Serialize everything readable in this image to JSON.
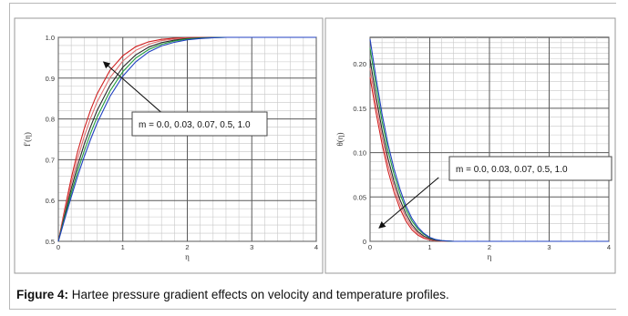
{
  "caption": {
    "label": "Figure 4:",
    "text": " Hartee pressure gradient effects on velocity and temperature profiles."
  },
  "colors": {
    "grid": "#5a5a5a",
    "plot_bg": "#ffffff",
    "panel_border": "#9a9a9a",
    "series": [
      "#d02020",
      "#e07070",
      "#2a2a2a",
      "#1f9a3a",
      "#2040c0"
    ]
  },
  "chart_data": [
    {
      "type": "line",
      "xlabel": "η",
      "ylabel": "f′(η)",
      "xlim": [
        0,
        4
      ],
      "ylim": [
        0.5,
        1.0
      ],
      "xticks": [
        "0",
        "1",
        "2",
        "3",
        "4"
      ],
      "yticks": [
        "0.5",
        "0.6",
        "0.7",
        "0.8",
        "0.9",
        "1.0"
      ],
      "grid": true,
      "annotation": {
        "text": "m = 0.0, 0.03, 0.07, 0.5, 1.0",
        "arrow_to": [
          0.7,
          0.94
        ],
        "arrow_from": [
          2.0,
          0.76
        ]
      },
      "series": [
        {
          "m": 0.0,
          "x": [
            0,
            0.1,
            0.2,
            0.3,
            0.4,
            0.5,
            0.6,
            0.8,
            1.0,
            1.2,
            1.4,
            1.6,
            1.8,
            2.0,
            2.2,
            2.4,
            2.6,
            4.0
          ],
          "y": [
            0.5,
            0.58,
            0.655,
            0.72,
            0.775,
            0.822,
            0.861,
            0.919,
            0.955,
            0.977,
            0.989,
            0.995,
            0.998,
            0.999,
            1.0,
            1.0,
            1.0,
            1.0
          ]
        },
        {
          "m": 0.03,
          "x": [
            0,
            0.1,
            0.2,
            0.3,
            0.4,
            0.5,
            0.6,
            0.8,
            1.0,
            1.2,
            1.4,
            1.6,
            1.8,
            2.0,
            2.2,
            2.4,
            2.6,
            4.0
          ],
          "y": [
            0.5,
            0.573,
            0.642,
            0.703,
            0.756,
            0.802,
            0.841,
            0.901,
            0.942,
            0.968,
            0.983,
            0.992,
            0.996,
            0.998,
            0.999,
            1.0,
            1.0,
            1.0
          ]
        },
        {
          "m": 0.07,
          "x": [
            0,
            0.1,
            0.2,
            0.3,
            0.4,
            0.5,
            0.6,
            0.8,
            1.0,
            1.2,
            1.4,
            1.6,
            1.8,
            2.0,
            2.2,
            2.4,
            2.6,
            4.0
          ],
          "y": [
            0.5,
            0.566,
            0.629,
            0.686,
            0.737,
            0.781,
            0.82,
            0.882,
            0.927,
            0.957,
            0.976,
            0.987,
            0.993,
            0.997,
            0.999,
            1.0,
            1.0,
            1.0
          ]
        },
        {
          "m": 0.5,
          "x": [
            0,
            0.1,
            0.2,
            0.3,
            0.4,
            0.5,
            0.6,
            0.8,
            1.0,
            1.2,
            1.4,
            1.6,
            1.8,
            2.0,
            2.2,
            2.4,
            2.6,
            4.0
          ],
          "y": [
            0.5,
            0.56,
            0.618,
            0.672,
            0.721,
            0.765,
            0.804,
            0.868,
            0.916,
            0.949,
            0.97,
            0.983,
            0.991,
            0.996,
            0.998,
            0.999,
            1.0,
            1.0
          ]
        },
        {
          "m": 1.0,
          "x": [
            0,
            0.1,
            0.2,
            0.3,
            0.4,
            0.5,
            0.6,
            0.8,
            1.0,
            1.2,
            1.4,
            1.6,
            1.8,
            2.0,
            2.2,
            2.4,
            2.6,
            4.0
          ],
          "y": [
            0.5,
            0.555,
            0.609,
            0.66,
            0.707,
            0.75,
            0.789,
            0.855,
            0.905,
            0.94,
            0.964,
            0.979,
            0.988,
            0.994,
            0.997,
            0.999,
            1.0,
            1.0
          ]
        }
      ]
    },
    {
      "type": "line",
      "xlabel": "η",
      "ylabel": "θ(η)",
      "xlim": [
        0,
        4
      ],
      "ylim": [
        0,
        0.23
      ],
      "xticks": [
        "0",
        "1",
        "2",
        "3",
        "4"
      ],
      "yticks": [
        "0",
        "0.05",
        "0.10",
        "0.15",
        "0.20"
      ],
      "grid": true,
      "annotation": {
        "text": "m = 0.0, 0.03, 0.07, 0.5, 1.0",
        "arrow_to": [
          0.15,
          0.015
        ],
        "arrow_from": [
          1.15,
          0.072
        ]
      },
      "series": [
        {
          "m": 0.0,
          "x": [
            0,
            0.1,
            0.2,
            0.3,
            0.4,
            0.5,
            0.6,
            0.7,
            0.8,
            0.9,
            1.0,
            1.1,
            1.2,
            1.4,
            4.0
          ],
          "y": [
            0.185,
            0.145,
            0.11,
            0.08,
            0.056,
            0.037,
            0.023,
            0.013,
            0.007,
            0.0035,
            0.0015,
            0.0006,
            0.0002,
            0,
            0
          ]
        },
        {
          "m": 0.03,
          "x": [
            0,
            0.1,
            0.2,
            0.3,
            0.4,
            0.5,
            0.6,
            0.7,
            0.8,
            0.9,
            1.0,
            1.1,
            1.2,
            1.4,
            4.0
          ],
          "y": [
            0.195,
            0.154,
            0.118,
            0.087,
            0.062,
            0.042,
            0.027,
            0.016,
            0.009,
            0.0045,
            0.002,
            0.0008,
            0.0003,
            0,
            0
          ]
        },
        {
          "m": 0.07,
          "x": [
            0,
            0.1,
            0.2,
            0.3,
            0.4,
            0.5,
            0.6,
            0.7,
            0.8,
            0.9,
            1.0,
            1.1,
            1.2,
            1.4,
            4.0
          ],
          "y": [
            0.205,
            0.163,
            0.126,
            0.094,
            0.068,
            0.047,
            0.031,
            0.019,
            0.011,
            0.006,
            0.003,
            0.0012,
            0.0005,
            0,
            0
          ]
        },
        {
          "m": 0.5,
          "x": [
            0,
            0.1,
            0.2,
            0.3,
            0.4,
            0.5,
            0.6,
            0.7,
            0.8,
            0.9,
            1.0,
            1.1,
            1.2,
            1.4,
            4.0
          ],
          "y": [
            0.218,
            0.175,
            0.136,
            0.103,
            0.076,
            0.054,
            0.036,
            0.023,
            0.014,
            0.008,
            0.004,
            0.0018,
            0.0007,
            0,
            0
          ]
        },
        {
          "m": 1.0,
          "x": [
            0,
            0.1,
            0.2,
            0.3,
            0.4,
            0.5,
            0.6,
            0.7,
            0.8,
            0.9,
            1.0,
            1.1,
            1.2,
            1.4,
            4.0
          ],
          "y": [
            0.228,
            0.184,
            0.144,
            0.11,
            0.082,
            0.059,
            0.04,
            0.026,
            0.016,
            0.009,
            0.0045,
            0.002,
            0.0008,
            0,
            0
          ]
        }
      ]
    }
  ]
}
